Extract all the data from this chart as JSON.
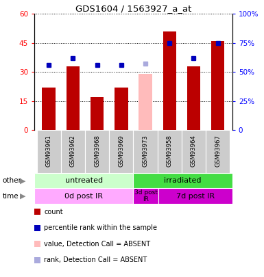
{
  "title": "GDS1604 / 1563927_a_at",
  "samples": [
    "GSM93961",
    "GSM93962",
    "GSM93968",
    "GSM93969",
    "GSM93973",
    "GSM93958",
    "GSM93964",
    "GSM93967"
  ],
  "bar_values": [
    22,
    33,
    17,
    22,
    29,
    51,
    33,
    46
  ],
  "bar_colors": [
    "#bb0000",
    "#bb0000",
    "#bb0000",
    "#bb0000",
    "#ffbbbb",
    "#bb0000",
    "#bb0000",
    "#bb0000"
  ],
  "rank_values": [
    56,
    62,
    56,
    56,
    57,
    75,
    62,
    75
  ],
  "rank_colors": [
    "#0000bb",
    "#0000bb",
    "#0000bb",
    "#0000bb",
    "#aaaadd",
    "#0000bb",
    "#0000bb",
    "#0000bb"
  ],
  "ylim_left": [
    0,
    60
  ],
  "ylim_right": [
    0,
    100
  ],
  "yticks_left": [
    0,
    15,
    30,
    45,
    60
  ],
  "yticks_right": [
    0,
    25,
    50,
    75,
    100
  ],
  "ytick_labels_left": [
    "0",
    "15",
    "30",
    "45",
    "60"
  ],
  "ytick_labels_right": [
    "0",
    "25%",
    "50%",
    "75%",
    "100%"
  ],
  "group_other": [
    {
      "label": "untreated",
      "start": 0,
      "end": 4,
      "color": "#ccffcc"
    },
    {
      "label": "irradiated",
      "start": 4,
      "end": 8,
      "color": "#44dd44"
    }
  ],
  "group_time": [
    {
      "label": "0d post IR",
      "start": 0,
      "end": 4,
      "color": "#ffaaff"
    },
    {
      "label": "3d post\nIR",
      "start": 4,
      "end": 5,
      "color": "#cc00cc"
    },
    {
      "label": "7d post IR",
      "start": 5,
      "end": 8,
      "color": "#cc00cc"
    }
  ],
  "legend_items": [
    {
      "color": "#bb0000",
      "label": "count",
      "marker": "s"
    },
    {
      "color": "#0000bb",
      "label": "percentile rank within the sample",
      "marker": "s"
    },
    {
      "color": "#ffbbbb",
      "label": "value, Detection Call = ABSENT",
      "marker": "s"
    },
    {
      "color": "#aaaadd",
      "label": "rank, Detection Call = ABSENT",
      "marker": "s"
    }
  ],
  "plot_bg": "#ffffff",
  "label_bg": "#cccccc"
}
